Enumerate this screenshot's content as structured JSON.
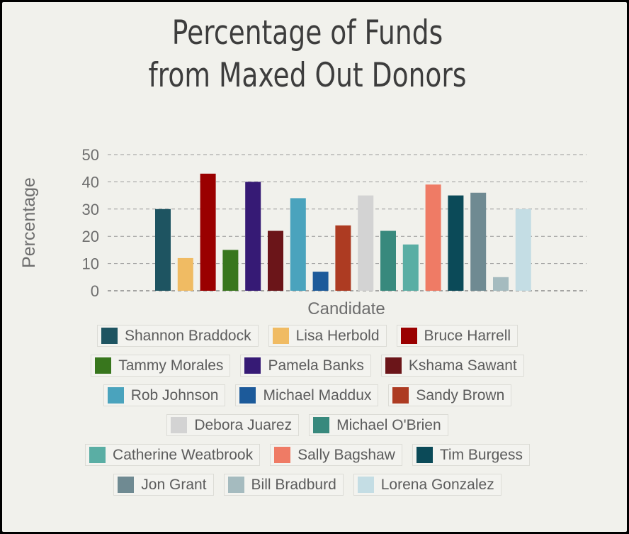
{
  "chart_data": {
    "type": "bar",
    "title": [
      "Percentage of Funds",
      "from Maxed Out Donors"
    ],
    "xlabel": "Candidate",
    "ylabel": "Percentage",
    "ylim": [
      0,
      50
    ],
    "yticks": [
      "0",
      "10",
      "20",
      "30",
      "40",
      "50"
    ],
    "grid": true,
    "legend_position": "bottom",
    "categories": [
      "Shannon Braddock",
      "Lisa Herbold",
      "Bruce Harrell",
      "Tammy Morales",
      "Pamela Banks",
      "Kshama Sawant",
      "Rob Johnson",
      "Michael Maddux",
      "Sandy Brown",
      "Debora Juarez",
      "Michael O'Brien",
      "Catherine Weatbrook",
      "Sally Bagshaw",
      "Tim Burgess",
      "Jon Grant",
      "Bill Bradburd",
      "Lorena Gonzalez"
    ],
    "values": [
      30,
      12,
      43,
      15,
      40,
      22,
      34,
      7,
      24,
      35,
      22,
      17,
      39,
      35,
      36,
      5,
      30
    ],
    "colors": [
      "#1e5461",
      "#f0bb63",
      "#9a0000",
      "#38761d",
      "#361a75",
      "#6b1519",
      "#4aa3bd",
      "#1c5a9a",
      "#ad3b22",
      "#d3d3d3",
      "#38897d",
      "#5aaea4",
      "#ef7b65",
      "#0b4a58",
      "#6f8a92",
      "#a5bbbf",
      "#c4dde4"
    ]
  },
  "legend_rows": [
    [
      0,
      1,
      2
    ],
    [
      3,
      4,
      5
    ],
    [
      6,
      7,
      8
    ],
    [
      9,
      10
    ],
    [
      11,
      12,
      13
    ],
    [
      14,
      15,
      16
    ]
  ]
}
